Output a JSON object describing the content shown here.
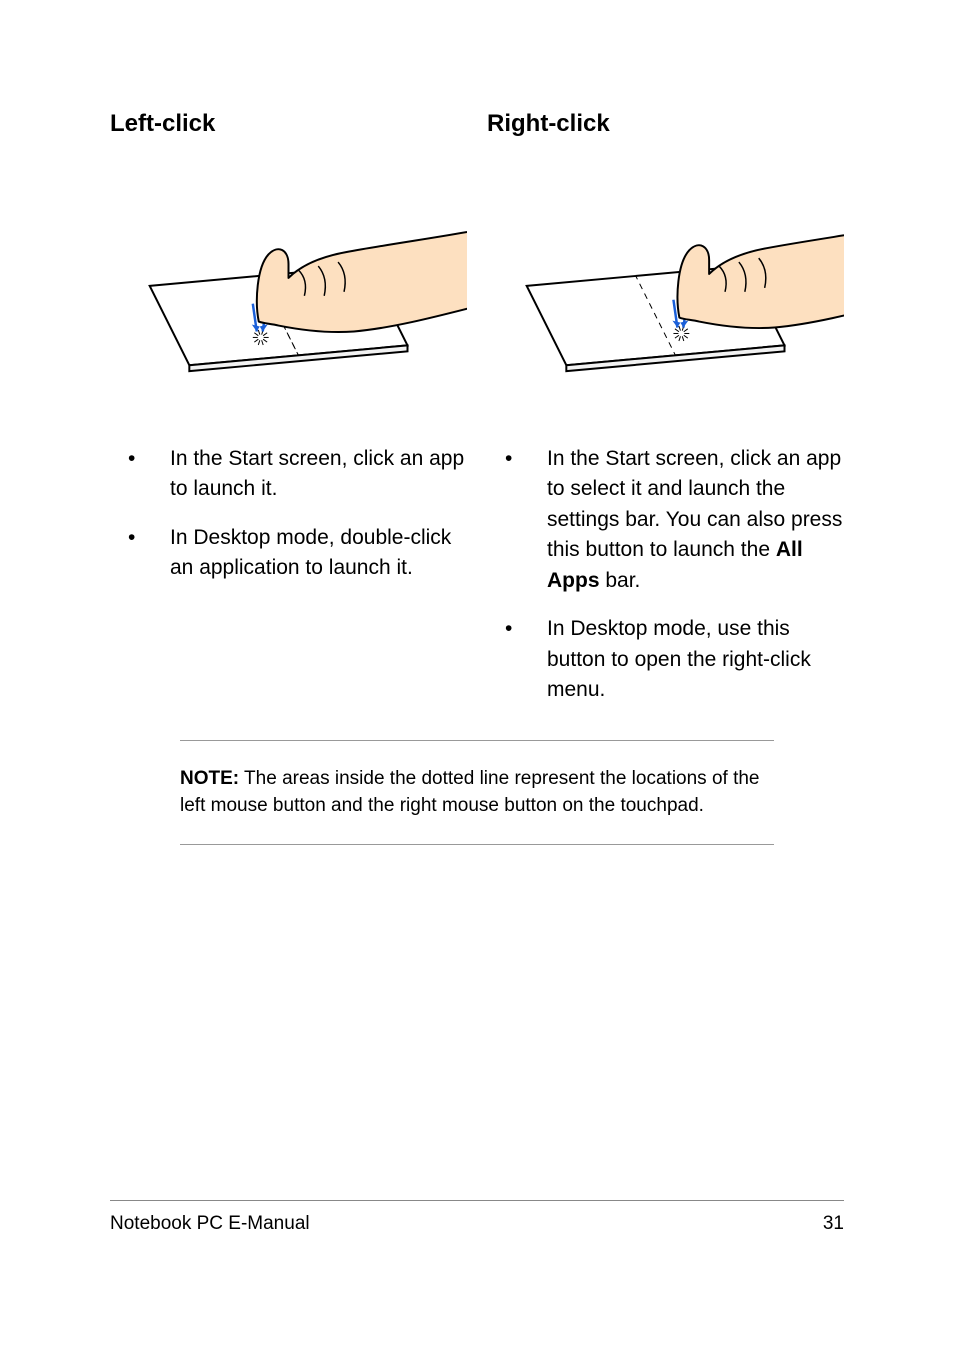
{
  "left": {
    "heading": "Left-click",
    "bullets": [
      {
        "text": "In the Start screen, click an app to launch it."
      },
      {
        "text": "In Desktop mode, double-click an application to launch it."
      }
    ],
    "illustration": {
      "skin_color": "#fde0c0",
      "outline_color": "#000000",
      "pad_fill": "#ffffff",
      "guide_color": "#000000",
      "arrow_color": "#1a5fd8",
      "finger_x_ratio": 0.4,
      "show_regions": true
    }
  },
  "right": {
    "heading": "Right-click",
    "bullets": [
      {
        "pre": "In the Start screen, click an app to select it and launch the settings bar. You can also press this button to launch the ",
        "bold": "All Apps",
        "post": " bar."
      },
      {
        "text": "In Desktop mode, use this button to open the right-click menu."
      }
    ],
    "illustration": {
      "skin_color": "#fde0c0",
      "outline_color": "#000000",
      "pad_fill": "#ffffff",
      "guide_color": "#000000",
      "arrow_color": "#1a5fd8",
      "finger_x_ratio": 0.6,
      "show_regions": false
    }
  },
  "note": {
    "label": "NOTE:",
    "text": " The areas inside the dotted line represent the locations of the left mouse button and the right mouse button on the touchpad."
  },
  "footer": {
    "title": "Notebook PC E-Manual",
    "page": "31"
  },
  "style": {
    "text_color": "#000000",
    "background": "#ffffff",
    "rule_color": "#999999",
    "heading_fontsize": 24,
    "body_fontsize": 21,
    "note_fontsize": 19,
    "footer_fontsize": 19
  }
}
